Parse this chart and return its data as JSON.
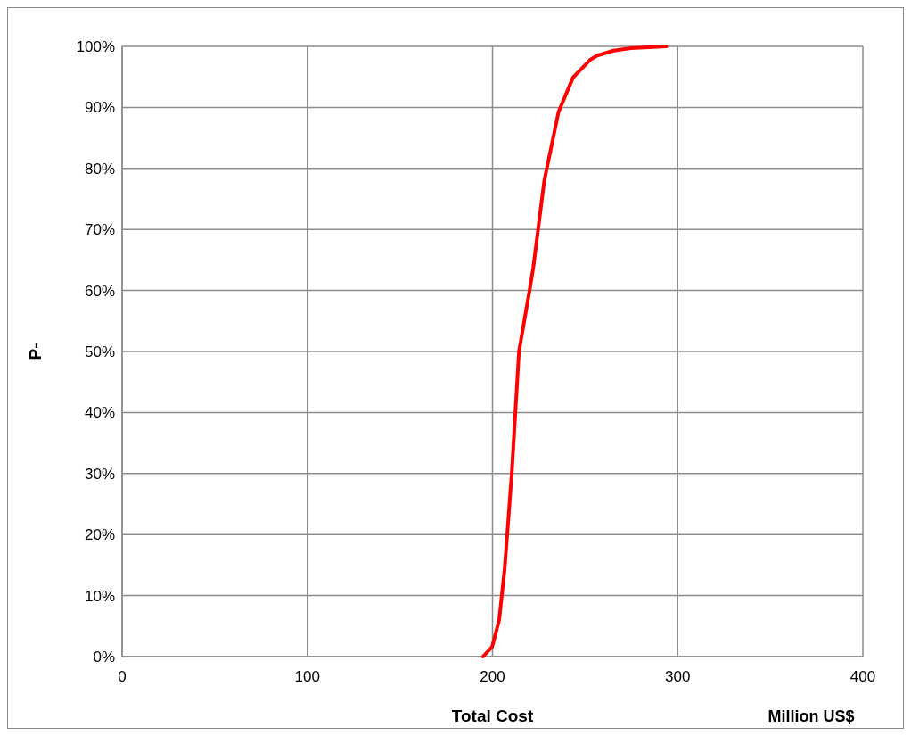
{
  "chart_data": {
    "type": "line",
    "xlabel": "Total Cost",
    "ylabel": "P-",
    "annotations": [
      "Million US$"
    ],
    "series": [
      {
        "color": "#ff0000",
        "x": [
          194.9,
          199.8,
          203.6,
          206.6,
          210.4,
          214.3,
          220,
          222,
          227.9,
          235.7,
          243.5,
          252.7,
          256.6,
          265.4,
          274.6,
          294
        ],
        "values": [
          0,
          1.6,
          6,
          14.5,
          30,
          50,
          60,
          63.7,
          77.9,
          89.3,
          94.9,
          97.8,
          98.5,
          99.3,
          99.7,
          100
        ]
      }
    ],
    "xlim": [
      0,
      400
    ],
    "xticks": [
      0,
      100,
      200,
      300,
      400
    ],
    "ylim": [
      0,
      100
    ],
    "yticks": [
      {
        "value": 0,
        "label": "0%"
      },
      {
        "value": 10,
        "label": "10%"
      },
      {
        "value": 20,
        "label": "20%"
      },
      {
        "value": 30,
        "label": "30%"
      },
      {
        "value": 40,
        "label": "40%"
      },
      {
        "value": 50,
        "label": "50%"
      },
      {
        "value": 60,
        "label": "60%"
      },
      {
        "value": 70,
        "label": "70%"
      },
      {
        "value": 80,
        "label": "80%"
      },
      {
        "value": 90,
        "label": "90%"
      },
      {
        "value": 100,
        "label": "100%"
      }
    ],
    "grid": true,
    "marker": "none",
    "line_style": "solid"
  }
}
